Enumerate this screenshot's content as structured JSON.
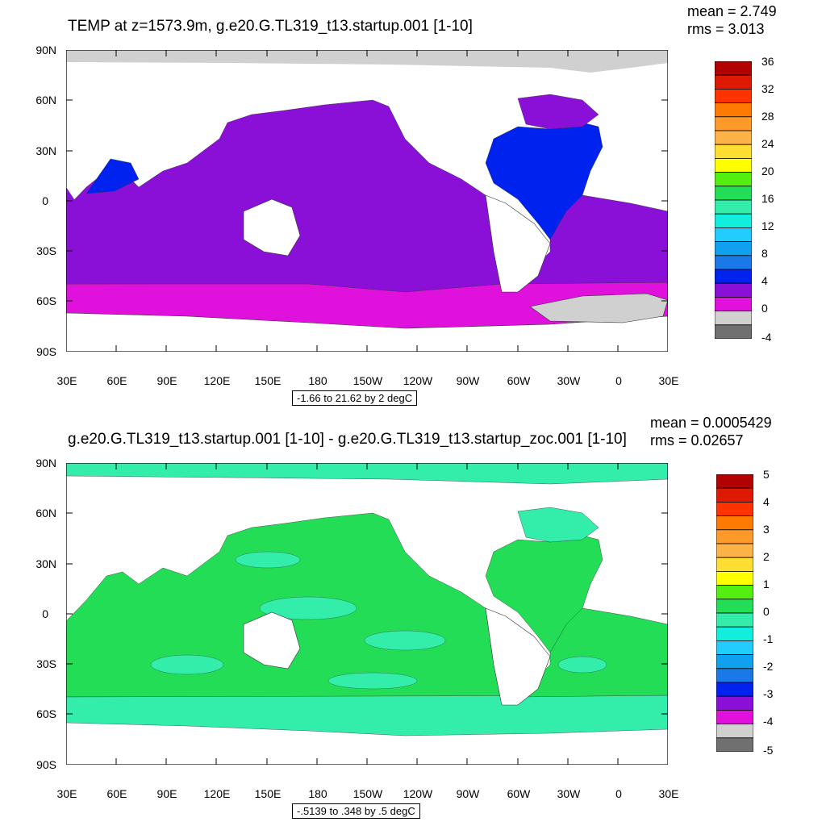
{
  "panels": [
    {
      "id": "top",
      "title": "TEMP at z=1573.9m, g.e20.G.TL319_t13.startup.001 [1-10]",
      "stats": {
        "mean": "mean = 2.749",
        "rms": "rms = 3.013"
      },
      "range_label": "-1.66 to 21.62 by 2 degC",
      "y_ticks": [
        "90N",
        "60N",
        "30N",
        "0",
        "30S",
        "60S",
        "90S"
      ],
      "x_ticks": [
        "30E",
        "60E",
        "90E",
        "120E",
        "150E",
        "180",
        "150W",
        "120W",
        "90W",
        "60W",
        "30W",
        "0",
        "30E"
      ],
      "colorbar": {
        "labels": [
          "36",
          "32",
          "28",
          "24",
          "20",
          "16",
          "12",
          "8",
          "4",
          "0",
          "-4"
        ],
        "colors": [
          "#b30000",
          "#dd1a00",
          "#ff3300",
          "#ff7a00",
          "#ff9a2a",
          "#ffb347",
          "#ffdd33",
          "#ffff00",
          "#55ee11",
          "#22dd55",
          "#33eeaa",
          "#11eedd",
          "#22ccff",
          "#0fa0f0",
          "#1a78e8",
          "#0022ee",
          "#8a10d8",
          "#e010dd",
          "#d0d0d0",
          "#707070"
        ]
      },
      "map": {
        "ocean_color": "#8a10d8",
        "southern_color": "#e010dd",
        "atlantic_color": "#0022ee",
        "ice_color": "#d0d0d0"
      }
    },
    {
      "id": "bottom",
      "title": "g.e20.G.TL319_t13.startup.001 [1-10] - g.e20.G.TL319_t13.startup_zoc.001 [1-10]",
      "stats": {
        "mean": "mean = 0.0005429",
        "rms": "rms = 0.02657"
      },
      "range_label": "-.5139 to .348 by .5 degC",
      "y_ticks": [
        "90N",
        "60N",
        "30N",
        "0",
        "30S",
        "60S",
        "90S"
      ],
      "x_ticks": [
        "30E",
        "60E",
        "90E",
        "120E",
        "150E",
        "180",
        "150W",
        "120W",
        "90W",
        "60W",
        "30W",
        "0",
        "30E"
      ],
      "colorbar": {
        "labels": [
          "5",
          "4",
          "3",
          "2",
          "1",
          "0",
          "-1",
          "-2",
          "-3",
          "-4",
          "-5"
        ],
        "colors": [
          "#b30000",
          "#dd1a00",
          "#ff3300",
          "#ff7a00",
          "#ff9a2a",
          "#ffb347",
          "#ffdd33",
          "#ffff00",
          "#55ee11",
          "#22dd55",
          "#33eeaa",
          "#11eedd",
          "#22ccff",
          "#0fa0f0",
          "#1a78e8",
          "#0022ee",
          "#8a10d8",
          "#e010dd",
          "#d0d0d0",
          "#707070"
        ]
      },
      "map": {
        "ocean_color": "#22dd55",
        "alt_color": "#33eeaa",
        "arctic_color": "#33eeaa"
      }
    }
  ]
}
